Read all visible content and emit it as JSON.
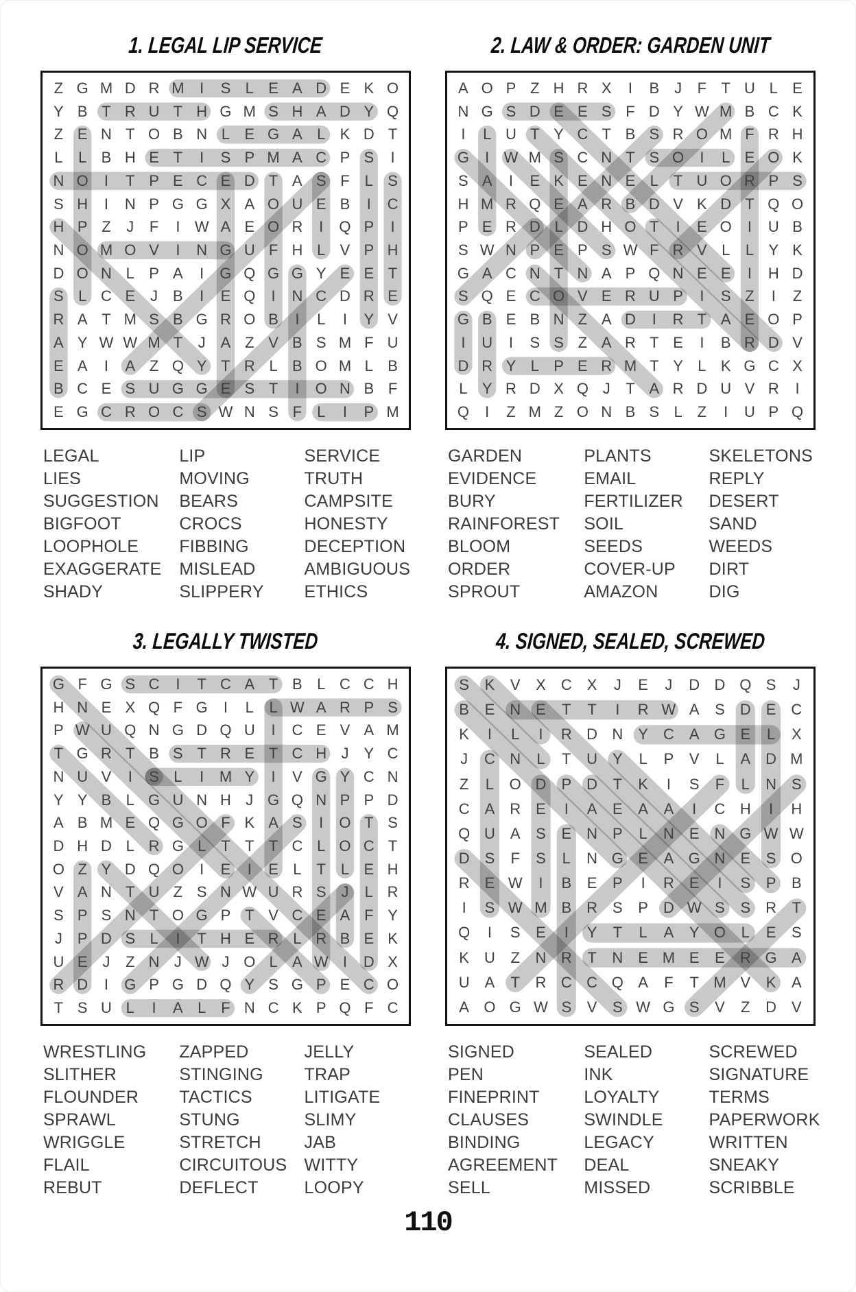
{
  "page": {
    "number": "110",
    "background_color": "#ffffff",
    "grid_border_color": "#141414",
    "letter_color": "#3e4043",
    "highlight_color": "rgba(0,0,0,0.21)",
    "list_text_color": "#393b3d"
  },
  "puzzles": [
    {
      "id": 1,
      "title": "1. LEGAL LIP SERVICE",
      "rows": 15,
      "cols": 15,
      "grid": [
        "ZGMDRMISLEADEKO",
        "YBTRUTHGMSHADYQ",
        "ZENTOBNLEGALKDT",
        "LLBHETISPMACPSI",
        "NOITPECEDTASFLS",
        "SHINPGGXAOUEBIC",
        "HPZJFIWAEORIQPI",
        "NOMOVINGUFHLVPH",
        "DONLPAIGQGGYEET",
        "SLCEJBIEQINCDRE",
        "RATMSBGROBILIYV",
        "AYWWMTJAZVBSMFU",
        "EAIAZQYTRLBOMLB",
        "BCESUGGESTIONBF",
        "EGCROCSWNSFLIPM"
      ],
      "words": {
        "col1": [
          "LEGAL",
          "LIES",
          "SUGGESTION",
          "BIGFOOT",
          "LOOPHOLE",
          "EXAGGERATE",
          "SHADY"
        ],
        "col2": [
          "LIP",
          "MOVING",
          "BEARS",
          "CROCS",
          "FIBBING",
          "MISLEAD",
          "SLIPPERY"
        ],
        "col3": [
          "SERVICE",
          "TRUTH",
          "CAMPSITE",
          "HONESTY",
          "DECEPTION",
          "AMBIGUOUS",
          "ETHICS"
        ]
      },
      "highlights": [
        {
          "word": "MISLEAD",
          "from": [
            1,
            6
          ],
          "to": [
            1,
            12
          ]
        },
        {
          "word": "TRUTH",
          "from": [
            2,
            3
          ],
          "to": [
            2,
            7
          ]
        },
        {
          "word": "SHADY",
          "from": [
            2,
            10
          ],
          "to": [
            2,
            14
          ]
        },
        {
          "word": "LEGAL",
          "from": [
            3,
            8
          ],
          "to": [
            3,
            12
          ]
        },
        {
          "word": "CAMPSITE",
          "from": [
            4,
            5
          ],
          "to": [
            4,
            12
          ]
        },
        {
          "word": "DECEPTION",
          "from": [
            5,
            1
          ],
          "to": [
            5,
            9
          ]
        },
        {
          "word": "LOOPHOLE",
          "from": [
            3,
            2
          ],
          "to": [
            10,
            2
          ]
        },
        {
          "word": "EXAGGERATE",
          "from": [
            5,
            8
          ],
          "to": [
            14,
            8
          ]
        },
        {
          "word": "BIGFOOT",
          "from": [
            5,
            10
          ],
          "to": [
            11,
            10
          ]
        },
        {
          "word": "LIES",
          "from": [
            5,
            12
          ],
          "to": [
            8,
            12
          ]
        },
        {
          "word": "SLIPPERY",
          "from": [
            4,
            14
          ],
          "to": [
            11,
            14
          ]
        },
        {
          "word": "ETHICS",
          "from": [
            5,
            15
          ],
          "to": [
            10,
            15
          ]
        },
        {
          "word": "MOVING",
          "from": [
            8,
            3
          ],
          "to": [
            8,
            8
          ]
        },
        {
          "word": "BEARS",
          "from": [
            10,
            1
          ],
          "to": [
            14,
            1
          ]
        },
        {
          "word": "FIBBING",
          "from": [
            9,
            11
          ],
          "to": [
            15,
            11
          ]
        },
        {
          "word": "HONESTY",
          "from": [
            7,
            1
          ],
          "to": [
            13,
            7
          ]
        },
        {
          "word": "AMBIGUOUS",
          "from": [
            5,
            12
          ],
          "to": [
            13,
            4
          ]
        },
        {
          "word": "SERVICE",
          "from": [
            9,
            13
          ],
          "to": [
            15,
            7
          ]
        },
        {
          "word": "SUGGESTION",
          "from": [
            14,
            4
          ],
          "to": [
            14,
            13
          ]
        },
        {
          "word": "CROCS",
          "from": [
            15,
            3
          ],
          "to": [
            15,
            7
          ]
        },
        {
          "word": "LIP",
          "from": [
            15,
            12
          ],
          "to": [
            15,
            14
          ]
        }
      ]
    },
    {
      "id": 2,
      "title": "2. LAW & ORDER: GARDEN UNIT",
      "rows": 15,
      "cols": 15,
      "grid": [
        "AOPZHRXIBJFTULE",
        "NGSDEESFDYWMBCK",
        "ILUTYCTBSROMFRH",
        "GIWMSCNTSOILEOK",
        "SAIEKENELTUORPS",
        "HMRQEARBDVKDTQO",
        "PERDLDHOTIEOIUB",
        "SWNPEPSWFRVLLYK",
        "GACNTNAPQNEEIHD",
        "SQECOVERUPISZIZ",
        "GBEBNZADIRTAEOP",
        "IUISSZARTEIBRDV",
        "DRYLPERMTYLKGCX",
        "LYRDXQJTARDUVRI",
        "QIZMZONBSLZIUPQ"
      ],
      "words": {
        "col1": [
          "GARDEN",
          "EVIDENCE",
          "BURY",
          "RAINFOREST",
          "BLOOM",
          "ORDER",
          "SPROUT"
        ],
        "col2": [
          "PLANTS",
          "EMAIL",
          "FERTILIZER",
          "SOIL",
          "SEEDS",
          "COVER-UP",
          "AMAZON"
        ],
        "col3": [
          "SKELETONS",
          "REPLY",
          "DESERT",
          "SAND",
          "WEEDS",
          "DIRT",
          "DIG"
        ]
      },
      "highlights": [
        {
          "word": "SEEDS",
          "from": [
            2,
            3
          ],
          "to": [
            2,
            7
          ]
        },
        {
          "word": "SOIL",
          "from": [
            4,
            9
          ],
          "to": [
            4,
            12
          ]
        },
        {
          "word": "SPROUT",
          "from": [
            5,
            10
          ],
          "to": [
            5,
            15
          ]
        },
        {
          "word": "COVER-UP",
          "from": [
            10,
            4
          ],
          "to": [
            10,
            10
          ]
        },
        {
          "word": "DIRT",
          "from": [
            11,
            8
          ],
          "to": [
            11,
            11
          ]
        },
        {
          "word": "REPLY",
          "from": [
            13,
            3
          ],
          "to": [
            13,
            7
          ]
        },
        {
          "word": "BURY",
          "from": [
            11,
            2
          ],
          "to": [
            14,
            2
          ]
        },
        {
          "word": "DIG",
          "from": [
            11,
            1
          ],
          "to": [
            13,
            1
          ]
        },
        {
          "word": "EMAIL",
          "from": [
            3,
            2
          ],
          "to": [
            7,
            2
          ]
        },
        {
          "word": "SKELETONS",
          "from": [
            4,
            5
          ],
          "to": [
            12,
            5
          ]
        },
        {
          "word": "FERTILIZER",
          "from": [
            3,
            13
          ],
          "to": [
            12,
            13
          ]
        },
        {
          "word": "GARDEN",
          "from": [
            4,
            1
          ],
          "to": [
            9,
            6
          ]
        },
        {
          "word": "WEEDS",
          "from": [
            4,
            3
          ],
          "to": [
            8,
            7
          ]
        },
        {
          "word": "SAND",
          "from": [
            7,
            4
          ],
          "to": [
            10,
            1
          ]
        },
        {
          "word": "AMAZON",
          "from": [
            9,
            4
          ],
          "to": [
            14,
            9
          ]
        },
        {
          "word": "EVIDENCE",
          "from": [
            2,
            5
          ],
          "to": [
            9,
            12
          ]
        },
        {
          "word": "BLOOM",
          "from": [
            2,
            12
          ],
          "to": [
            6,
            8
          ]
        },
        {
          "word": "PLANTS",
          "from": [
            3,
            9
          ],
          "to": [
            8,
            4
          ]
        },
        {
          "word": "ORDER",
          "from": [
            4,
            14
          ],
          "to": [
            8,
            10
          ]
        },
        {
          "word": "DESERT",
          "from": [
            7,
            9
          ],
          "to": [
            12,
            14
          ]
        },
        {
          "word": "RAINFOREST",
          "from": [
            3,
            4
          ],
          "to": [
            12,
            13
          ]
        }
      ]
    },
    {
      "id": 3,
      "title": "3. LEGALLY TWISTED",
      "rows": 15,
      "cols": 15,
      "grid": [
        "GFGSCITCATBLCCH",
        "HNEXQFGILLWARPS",
        "PWUQNGDQUICEVAM",
        "TGRTBSTRETCHJYC",
        "NUVISLIMYIVGYCN",
        "YYBLGUNHJGQNPPD",
        "ABMEQGOFKASIOTS",
        "DHDLRGLTTTCLOCT",
        "OZYDQOIEIELTLEH",
        "VANTUZSNWURSJLR",
        "SPSNTOGPTVCEAFY",
        "JPDSLITHERLRBEK",
        "UEJZNJWJOLAWIDX",
        "RDIGPGDQYSGPECO",
        "TSULIALFNCKPQFC"
      ],
      "words": {
        "col1": [
          "WRESTLING",
          "SLITHER",
          "FLOUNDER",
          "SPRAWL",
          "WRIGGLE",
          "FLAIL",
          "REBUT"
        ],
        "col2": [
          "ZAPPED",
          "STINGING",
          "TACTICS",
          "STUNG",
          "STRETCH",
          "CIRCUITOUS",
          "DEFLECT"
        ],
        "col3": [
          "JELLY",
          "TRAP",
          "LITIGATE",
          "SLIMY",
          "JAB",
          "WITTY",
          "LOOPY"
        ]
      },
      "highlights": [
        {
          "word": "TACTICS",
          "from": [
            1,
            4
          ],
          "to": [
            1,
            10
          ]
        },
        {
          "word": "SPRAWL",
          "from": [
            2,
            10
          ],
          "to": [
            2,
            15
          ]
        },
        {
          "word": "STRETCH",
          "from": [
            4,
            6
          ],
          "to": [
            4,
            12
          ]
        },
        {
          "word": "SLIMY",
          "from": [
            5,
            5
          ],
          "to": [
            5,
            9
          ]
        },
        {
          "word": "SLITHER",
          "from": [
            12,
            4
          ],
          "to": [
            12,
            10
          ]
        },
        {
          "word": "FLAIL",
          "from": [
            15,
            4
          ],
          "to": [
            15,
            8
          ]
        },
        {
          "word": "WRESTLING",
          "from": [
            5,
            12
          ],
          "to": [
            13,
            12
          ]
        },
        {
          "word": "LITIGATE",
          "from": [
            2,
            10
          ],
          "to": [
            9,
            10
          ]
        },
        {
          "word": "LOOPY",
          "from": [
            5,
            13
          ],
          "to": [
            9,
            13
          ]
        },
        {
          "word": "JAB",
          "from": [
            10,
            13
          ],
          "to": [
            12,
            13
          ]
        },
        {
          "word": "DEFLECT",
          "from": [
            7,
            14
          ],
          "to": [
            13,
            14
          ]
        },
        {
          "word": "ZAPPED",
          "from": [
            9,
            2
          ],
          "to": [
            14,
            2
          ]
        },
        {
          "word": "STUNG",
          "from": [
            1,
            1
          ],
          "to": [
            5,
            5
          ]
        },
        {
          "word": "WRIGGLE",
          "from": [
            3,
            2
          ],
          "to": [
            9,
            8
          ]
        },
        {
          "word": "REBUT",
          "from": [
            4,
            1
          ],
          "to": [
            8,
            5
          ]
        },
        {
          "word": "FLOUNDER",
          "from": [
            7,
            8
          ],
          "to": [
            14,
            1
          ]
        },
        {
          "word": "STINGING",
          "from": [
            7,
            11
          ],
          "to": [
            14,
            4
          ]
        },
        {
          "word": "CIRCUITOUS",
          "from": [
            5,
            5
          ],
          "to": [
            14,
            14
          ]
        },
        {
          "word": "WITTY",
          "from": [
            9,
            3
          ],
          "to": [
            13,
            7
          ]
        },
        {
          "word": "JELLY",
          "from": [
            10,
            13
          ],
          "to": [
            14,
            9
          ]
        },
        {
          "word": "TRAP",
          "from": [
            11,
            9
          ],
          "to": [
            14,
            12
          ]
        }
      ]
    },
    {
      "id": 4,
      "title": "4. SIGNED, SEALED, SCREWED",
      "rows": 14,
      "cols": 14,
      "grid": [
        "SKVXCXJEJDDQSJ",
        "BENETTIRWASDEC",
        "KILIRDNYCAGELX",
        "JCNLTUYLPVLADM",
        "ZLODPDTKISFLNS",
        "CAREIAEAAICHIH",
        "QUASENPLNENGWW",
        "DSFSLNGEAGNESO",
        "REWIBEPIREISPB",
        "ISWMBRSPDWSSRT",
        "QISEIYTLAYOLES",
        "KUZNRTNEMEERGA",
        "UATRCCQAFTMVKA",
        "AOGWSVSWGSVZDV"
      ],
      "words": {
        "col1": [
          "SIGNED",
          "PEN",
          "FINEPRINT",
          "CLAUSES",
          "BINDING",
          "AGREEMENT",
          "SELL"
        ],
        "col2": [
          "SEALED",
          "INK",
          "LOYALTY",
          "SWINDLE",
          "LEGACY",
          "DEAL",
          "MISSED"
        ],
        "col3": [
          "SCREWED",
          "SIGNATURE",
          "TERMS",
          "PAPERWORK",
          "WRITTEN",
          "SNEAKY",
          "SCRIBBLE"
        ]
      },
      "highlights": [
        {
          "word": "WRITTEN",
          "from": [
            2,
            3
          ],
          "to": [
            2,
            9
          ]
        },
        {
          "word": "LEGACY",
          "from": [
            3,
            8
          ],
          "to": [
            3,
            13
          ]
        },
        {
          "word": "LOYALTY",
          "from": [
            11,
            6
          ],
          "to": [
            11,
            12
          ]
        },
        {
          "word": "AGREEMENT",
          "from": [
            12,
            6
          ],
          "to": [
            12,
            14
          ]
        },
        {
          "word": "SELL",
          "from": [
            1,
            1
          ],
          "to": [
            4,
            4
          ]
        },
        {
          "word": "INK",
          "from": [
            1,
            2
          ],
          "to": [
            3,
            4
          ]
        },
        {
          "word": "BINDING",
          "from": [
            2,
            1
          ],
          "to": [
            8,
            7
          ]
        },
        {
          "word": "SIGNATURE",
          "from": [
            2,
            4
          ],
          "to": [
            10,
            12
          ]
        },
        {
          "word": "DEAL",
          "from": [
            2,
            12
          ],
          "to": [
            5,
            12
          ]
        },
        {
          "word": "SWINDLE",
          "from": [
            2,
            13
          ],
          "to": [
            8,
            13
          ]
        },
        {
          "word": "MISSED",
          "from": [
            5,
            4
          ],
          "to": [
            10,
            4
          ]
        },
        {
          "word": "CLAUSES",
          "from": [
            4,
            2
          ],
          "to": [
            10,
            2
          ]
        },
        {
          "word": "SCRIBBLE",
          "from": [
            7,
            5
          ],
          "to": [
            14,
            5
          ]
        },
        {
          "word": "SCREWED",
          "from": [
            8,
            1
          ],
          "to": [
            14,
            7
          ]
        },
        {
          "word": "PAPERWORK",
          "from": [
            5,
            5
          ],
          "to": [
            13,
            13
          ]
        },
        {
          "word": "SEALED",
          "from": [
            5,
            6
          ],
          "to": [
            10,
            11
          ]
        },
        {
          "word": "SIGNED",
          "from": [
            5,
            14
          ],
          "to": [
            10,
            9
          ]
        },
        {
          "word": "FINEPRINT",
          "from": [
            5,
            11
          ],
          "to": [
            13,
            3
          ]
        },
        {
          "word": "SNEAKY",
          "from": [
            4,
            7
          ],
          "to": [
            9,
            12
          ]
        },
        {
          "word": "PEN",
          "from": [
            7,
            11
          ],
          "to": [
            9,
            13
          ]
        },
        {
          "word": "TERMS",
          "from": [
            10,
            14
          ],
          "to": [
            14,
            10
          ]
        }
      ]
    }
  ]
}
